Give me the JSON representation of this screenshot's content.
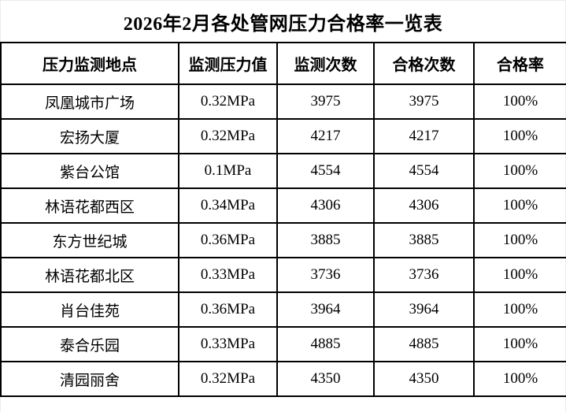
{
  "page": {
    "title": "2026年2月各处管网压力合格率一览表"
  },
  "table": {
    "columns": [
      "压力监测地点",
      "监测压力值",
      "监测次数",
      "合格次数",
      "合格率"
    ],
    "rows": [
      [
        "凤凰城市广场",
        "0.32MPa",
        "3975",
        "3975",
        "100%"
      ],
      [
        "宏扬大厦",
        "0.32MPa",
        "4217",
        "4217",
        "100%"
      ],
      [
        "紫台公馆",
        "0.1MPa",
        "4554",
        "4554",
        "100%"
      ],
      [
        "林语花都西区",
        "0.34MPa",
        "4306",
        "4306",
        "100%"
      ],
      [
        "东方世纪城",
        "0.36MPa",
        "3885",
        "3885",
        "100%"
      ],
      [
        "林语花都北区",
        "0.33MPa",
        "3736",
        "3736",
        "100%"
      ],
      [
        "肖台佳苑",
        "0.36MPa",
        "3964",
        "3964",
        "100%"
      ],
      [
        "泰合乐园",
        "0.33MPa",
        "4885",
        "4885",
        "100%"
      ],
      [
        "清园丽舍",
        "0.32MPa",
        "4350",
        "4350",
        "100%"
      ]
    ]
  },
  "colors": {
    "text": "#000000",
    "background": "#ffffff",
    "table_border": "#000000"
  }
}
